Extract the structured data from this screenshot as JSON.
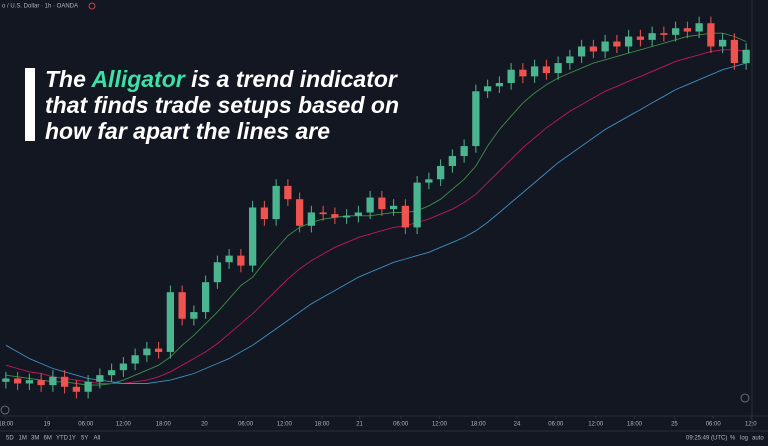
{
  "header": {
    "symbol": "o / U.S. Dollar · 1h · OANDA"
  },
  "overlay": {
    "before": "The ",
    "highlight": "Alligator",
    "after": " is a trend indicator",
    "line2": "that finds trade setups based on",
    "line3": "how far apart the lines are"
  },
  "toolbar": {
    "ranges": [
      "5D",
      "1M",
      "3M",
      "6M",
      "YTD",
      "1Y",
      "5Y",
      "All"
    ],
    "clock": "09:25:49 (UTC)",
    "percent": "%",
    "log": "log",
    "auto": "auto"
  },
  "chart_data": {
    "type": "candlestick",
    "up_color": "#4bb58f",
    "down_color": "#ef5350",
    "open": [
      1.102,
      1.1022,
      1.1019,
      1.1021,
      1.1018,
      1.1023,
      1.1017,
      1.1014,
      1.102,
      1.1024,
      1.1027,
      1.1031,
      1.1036,
      1.104,
      1.1038,
      1.1074,
      1.1058,
      1.1062,
      1.108,
      1.1092,
      1.1096,
      1.109,
      1.1125,
      1.1118,
      1.1138,
      1.113,
      1.1114,
      1.1122,
      1.1121,
      1.1119,
      1.112,
      1.1122,
      1.1131,
      1.1124,
      1.1126,
      1.1113,
      1.114,
      1.1142,
      1.115,
      1.1156,
      1.1162,
      1.1195,
      1.1198,
      1.12,
      1.1208,
      1.1204,
      1.121,
      1.1206,
      1.1212,
      1.1216,
      1.1222,
      1.1219,
      1.1225,
      1.1222,
      1.1228,
      1.1226,
      1.123,
      1.1229,
      1.1233,
      1.1231,
      1.1236,
      1.1222,
      1.1226,
      1.1212
    ],
    "high": [
      1.1026,
      1.1026,
      1.1025,
      1.1025,
      1.1027,
      1.1027,
      1.1021,
      1.1024,
      1.1028,
      1.1031,
      1.1035,
      1.104,
      1.1044,
      1.1044,
      1.1078,
      1.1078,
      1.1066,
      1.1084,
      1.1096,
      1.11,
      1.11,
      1.1129,
      1.1129,
      1.1142,
      1.1142,
      1.1134,
      1.1126,
      1.1126,
      1.1125,
      1.1124,
      1.1126,
      1.1135,
      1.1135,
      1.113,
      1.113,
      1.1144,
      1.1146,
      1.1154,
      1.116,
      1.1166,
      1.1199,
      1.1202,
      1.1204,
      1.1212,
      1.1212,
      1.1214,
      1.1214,
      1.1216,
      1.122,
      1.1226,
      1.1226,
      1.1229,
      1.1229,
      1.1232,
      1.1232,
      1.1234,
      1.1234,
      1.1237,
      1.1237,
      1.124,
      1.124,
      1.123,
      1.123,
      1.1224
    ],
    "low": [
      1.1016,
      1.1015,
      1.1015,
      1.1014,
      1.1014,
      1.1013,
      1.101,
      1.101,
      1.1016,
      1.102,
      1.1023,
      1.1027,
      1.1032,
      1.1034,
      1.1034,
      1.1054,
      1.1054,
      1.1058,
      1.1076,
      1.1088,
      1.1086,
      1.1086,
      1.1114,
      1.1114,
      1.1126,
      1.111,
      1.111,
      1.1117,
      1.1115,
      1.1115,
      1.1116,
      1.1118,
      1.112,
      1.112,
      1.1109,
      1.1109,
      1.1136,
      1.1138,
      1.1146,
      1.1152,
      1.1158,
      1.1191,
      1.1194,
      1.1196,
      1.12,
      1.12,
      1.1202,
      1.1202,
      1.1208,
      1.1212,
      1.1215,
      1.1215,
      1.1218,
      1.1218,
      1.1222,
      1.1222,
      1.1225,
      1.1225,
      1.1227,
      1.1227,
      1.1218,
      1.1218,
      1.1208,
      1.1208
    ],
    "close": [
      1.1022,
      1.1019,
      1.1021,
      1.1018,
      1.1023,
      1.1017,
      1.1014,
      1.102,
      1.1024,
      1.1027,
      1.1031,
      1.1036,
      1.104,
      1.1038,
      1.1074,
      1.1058,
      1.1062,
      1.108,
      1.1092,
      1.1096,
      1.109,
      1.1125,
      1.1118,
      1.1138,
      1.113,
      1.1114,
      1.1122,
      1.1121,
      1.1119,
      1.112,
      1.1122,
      1.1131,
      1.1124,
      1.1126,
      1.1113,
      1.114,
      1.1142,
      1.115,
      1.1156,
      1.1162,
      1.1195,
      1.1198,
      1.12,
      1.1208,
      1.1204,
      1.121,
      1.1206,
      1.1212,
      1.1216,
      1.1222,
      1.1219,
      1.1225,
      1.1222,
      1.1228,
      1.1226,
      1.123,
      1.1229,
      1.1233,
      1.1231,
      1.1236,
      1.1222,
      1.1226,
      1.1212,
      1.122
    ],
    "series": [
      {
        "color": "#3e8e4a",
        "values": [
          1.1024,
          1.1023,
          1.1022,
          1.1021,
          1.102,
          1.102,
          1.1019,
          1.1018,
          1.1018,
          1.1019,
          1.1021,
          1.1024,
          1.1027,
          1.103,
          1.1035,
          1.1042,
          1.1048,
          1.1055,
          1.1062,
          1.107,
          1.1078,
          1.1083,
          1.1092,
          1.11,
          1.1108,
          1.1113,
          1.1116,
          1.1118,
          1.1119,
          1.112,
          1.112,
          1.112,
          1.1121,
          1.1122,
          1.1122,
          1.1123,
          1.1126,
          1.113,
          1.1136,
          1.1142,
          1.115,
          1.1162,
          1.1172,
          1.118,
          1.1188,
          1.1194,
          1.1199,
          1.1203,
          1.1206,
          1.1209,
          1.1212,
          1.1214,
          1.1216,
          1.1218,
          1.122,
          1.1222,
          1.1224,
          1.1226,
          1.1228,
          1.1229,
          1.123,
          1.123,
          1.1228,
          1.1225
        ]
      },
      {
        "color": "#c2185b",
        "values": [
          1.103,
          1.1028,
          1.1026,
          1.1025,
          1.1023,
          1.1022,
          1.1021,
          1.102,
          1.1019,
          1.1019,
          1.1019,
          1.102,
          1.1021,
          1.1023,
          1.1026,
          1.103,
          1.1034,
          1.1038,
          1.1043,
          1.1049,
          1.1055,
          1.1061,
          1.1068,
          1.1075,
          1.1082,
          1.1088,
          1.1093,
          1.1097,
          1.1101,
          1.1104,
          1.1107,
          1.1109,
          1.1111,
          1.1113,
          1.1114,
          1.1116,
          1.1118,
          1.1121,
          1.1124,
          1.1128,
          1.1133,
          1.114,
          1.1147,
          1.1154,
          1.1161,
          1.1167,
          1.1173,
          1.1178,
          1.1183,
          1.1187,
          1.1191,
          1.1195,
          1.1198,
          1.1201,
          1.1204,
          1.1207,
          1.121,
          1.1213,
          1.1215,
          1.1217,
          1.1219,
          1.122,
          1.122,
          1.1219
        ]
      },
      {
        "color": "#3f8fc4",
        "values": [
          1.1042,
          1.1038,
          1.1034,
          1.1031,
          1.1028,
          1.1026,
          1.1024,
          1.1022,
          1.1021,
          1.102,
          1.1019,
          1.1019,
          1.1019,
          1.102,
          1.1021,
          1.1023,
          1.1025,
          1.1028,
          1.1031,
          1.1034,
          1.1038,
          1.1042,
          1.1047,
          1.1052,
          1.1057,
          1.1062,
          1.1067,
          1.1071,
          1.1075,
          1.1079,
          1.1083,
          1.1086,
          1.1089,
          1.1092,
          1.1094,
          1.1096,
          1.1098,
          1.1101,
          1.1104,
          1.1107,
          1.1111,
          1.1116,
          1.1122,
          1.1128,
          1.1134,
          1.114,
          1.1146,
          1.1152,
          1.1157,
          1.1162,
          1.1167,
          1.1172,
          1.1176,
          1.118,
          1.1184,
          1.1188,
          1.1192,
          1.1196,
          1.1199,
          1.1202,
          1.1205,
          1.1208,
          1.121,
          1.1212
        ]
      }
    ],
    "xlim": [
      -0.5,
      63.5
    ],
    "ylim": [
      1.1,
      1.125
    ],
    "xticks": [
      {
        "value": 0,
        "label": "18:00"
      },
      {
        "value": 3.5,
        "label": "19"
      },
      {
        "value": 6.8,
        "label": "06:00"
      },
      {
        "value": 10.0,
        "label": "12:00"
      },
      {
        "value": 13.4,
        "label": "18:00"
      },
      {
        "value": 16.9,
        "label": "20"
      },
      {
        "value": 20.4,
        "label": "06:00"
      },
      {
        "value": 23.7,
        "label": "12:00"
      },
      {
        "value": 26.9,
        "label": "18:00"
      },
      {
        "value": 30.1,
        "label": "21"
      },
      {
        "value": 33.6,
        "label": "06:00"
      },
      {
        "value": 36.9,
        "label": "12:00"
      },
      {
        "value": 40.2,
        "label": "18:00"
      },
      {
        "value": 43.5,
        "label": "24"
      },
      {
        "value": 46.8,
        "label": "06:00"
      },
      {
        "value": 50.2,
        "label": "12:00"
      },
      {
        "value": 53.5,
        "label": "18:00"
      },
      {
        "value": 56.9,
        "label": "25"
      },
      {
        "value": 60.2,
        "label": "06:00"
      },
      {
        "value": 63.4,
        "label": "12:0"
      }
    ]
  }
}
